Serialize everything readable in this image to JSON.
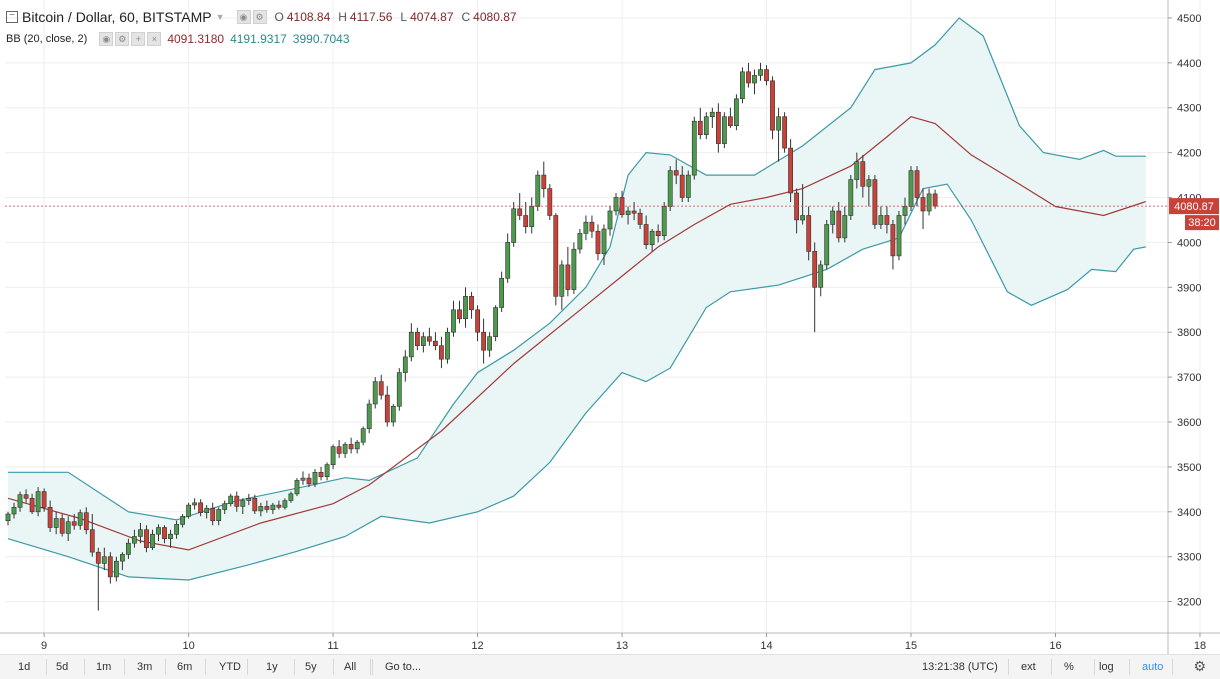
{
  "header": {
    "symbol_title": "Bitcoin / Dollar, 60, BITSTAMP",
    "ohlc": [
      {
        "label": "O",
        "value": "4108.84"
      },
      {
        "label": "H",
        "value": "4117.56"
      },
      {
        "label": "L",
        "value": "4074.87"
      },
      {
        "label": "C",
        "value": "4080.87"
      }
    ],
    "indicator": {
      "name": "BB (20, close, 2)",
      "values": [
        "4091.3180",
        "4191.9317",
        "3990.7043"
      ],
      "value_colors": [
        "#8b2d2d",
        "#2a8a8a",
        "#2a8a8a"
      ]
    }
  },
  "colors": {
    "up": "#4d9a4d",
    "down": "#c8423a",
    "band_line": "#3a9aa6",
    "band_fill": "#eaf5f5",
    "basis_line": "#a33a3a",
    "price_line": "#c8423a"
  },
  "chart_data": {
    "type": "candlestick",
    "interval": "60",
    "ylim": [
      3130,
      4540
    ],
    "y_ticks": [
      3200,
      3300,
      3400,
      3500,
      3600,
      3700,
      3800,
      3900,
      4000,
      4100,
      4200,
      4300,
      4400,
      4500
    ],
    "x_ticks": [
      {
        "label": "9",
        "bar": 6
      },
      {
        "label": "10",
        "bar": 30
      },
      {
        "label": "11",
        "bar": 54
      },
      {
        "label": "12",
        "bar": 78
      },
      {
        "label": "13",
        "bar": 102
      },
      {
        "label": "14",
        "bar": 126
      },
      {
        "label": "15",
        "bar": 150
      },
      {
        "label": "16",
        "bar": 174
      },
      {
        "label": "18",
        "bar": 198
      }
    ],
    "last_price": {
      "value": 4080.87,
      "label": "4080.87",
      "countdown": "38:20"
    },
    "bars": [
      [
        3380,
        3400,
        3370,
        3395
      ],
      [
        3395,
        3420,
        3385,
        3410
      ],
      [
        3410,
        3445,
        3400,
        3438
      ],
      [
        3438,
        3450,
        3420,
        3430
      ],
      [
        3430,
        3440,
        3395,
        3400
      ],
      [
        3400,
        3455,
        3390,
        3445
      ],
      [
        3445,
        3452,
        3400,
        3410
      ],
      [
        3410,
        3425,
        3355,
        3365
      ],
      [
        3365,
        3400,
        3350,
        3385
      ],
      [
        3385,
        3395,
        3345,
        3352
      ],
      [
        3352,
        3390,
        3335,
        3378
      ],
      [
        3378,
        3395,
        3360,
        3370
      ],
      [
        3370,
        3405,
        3360,
        3398
      ],
      [
        3398,
        3410,
        3350,
        3360
      ],
      [
        3360,
        3395,
        3300,
        3310
      ],
      [
        3310,
        3320,
        3180,
        3285
      ],
      [
        3285,
        3320,
        3270,
        3300
      ],
      [
        3300,
        3310,
        3240,
        3255
      ],
      [
        3255,
        3300,
        3245,
        3290
      ],
      [
        3290,
        3310,
        3270,
        3305
      ],
      [
        3305,
        3340,
        3295,
        3330
      ],
      [
        3330,
        3360,
        3320,
        3345
      ],
      [
        3345,
        3375,
        3330,
        3360
      ],
      [
        3360,
        3370,
        3310,
        3320
      ],
      [
        3320,
        3360,
        3315,
        3350
      ],
      [
        3350,
        3372,
        3335,
        3365
      ],
      [
        3365,
        3370,
        3330,
        3340
      ],
      [
        3340,
        3360,
        3320,
        3350
      ],
      [
        3350,
        3380,
        3340,
        3372
      ],
      [
        3372,
        3395,
        3365,
        3390
      ],
      [
        3390,
        3420,
        3385,
        3415
      ],
      [
        3415,
        3430,
        3405,
        3420
      ],
      [
        3420,
        3428,
        3390,
        3398
      ],
      [
        3398,
        3415,
        3385,
        3408
      ],
      [
        3408,
        3420,
        3370,
        3380
      ],
      [
        3380,
        3410,
        3370,
        3405
      ],
      [
        3405,
        3425,
        3395,
        3418
      ],
      [
        3418,
        3440,
        3412,
        3435
      ],
      [
        3435,
        3445,
        3400,
        3412
      ],
      [
        3412,
        3430,
        3395,
        3425
      ],
      [
        3425,
        3440,
        3415,
        3430
      ],
      [
        3430,
        3438,
        3395,
        3402
      ],
      [
        3402,
        3420,
        3390,
        3412
      ],
      [
        3412,
        3425,
        3398,
        3405
      ],
      [
        3405,
        3420,
        3395,
        3415
      ],
      [
        3415,
        3425,
        3405,
        3410
      ],
      [
        3410,
        3430,
        3405,
        3425
      ],
      [
        3425,
        3445,
        3420,
        3440
      ],
      [
        3440,
        3475,
        3435,
        3470
      ],
      [
        3470,
        3490,
        3460,
        3475
      ],
      [
        3475,
        3485,
        3455,
        3462
      ],
      [
        3462,
        3495,
        3455,
        3488
      ],
      [
        3488,
        3500,
        3470,
        3478
      ],
      [
        3478,
        3510,
        3470,
        3505
      ],
      [
        3505,
        3550,
        3495,
        3545
      ],
      [
        3545,
        3560,
        3520,
        3530
      ],
      [
        3530,
        3555,
        3520,
        3550
      ],
      [
        3550,
        3565,
        3530,
        3540
      ],
      [
        3540,
        3560,
        3530,
        3555
      ],
      [
        3555,
        3590,
        3548,
        3585
      ],
      [
        3585,
        3650,
        3575,
        3640
      ],
      [
        3640,
        3700,
        3630,
        3690
      ],
      [
        3690,
        3705,
        3650,
        3660
      ],
      [
        3660,
        3680,
        3590,
        3600
      ],
      [
        3600,
        3640,
        3590,
        3635
      ],
      [
        3635,
        3720,
        3625,
        3710
      ],
      [
        3710,
        3760,
        3690,
        3745
      ],
      [
        3745,
        3820,
        3735,
        3800
      ],
      [
        3800,
        3810,
        3760,
        3770
      ],
      [
        3770,
        3800,
        3755,
        3790
      ],
      [
        3790,
        3810,
        3770,
        3780
      ],
      [
        3780,
        3800,
        3760,
        3770
      ],
      [
        3770,
        3790,
        3720,
        3740
      ],
      [
        3740,
        3810,
        3730,
        3800
      ],
      [
        3800,
        3870,
        3790,
        3850
      ],
      [
        3850,
        3870,
        3820,
        3830
      ],
      [
        3830,
        3900,
        3810,
        3880
      ],
      [
        3880,
        3890,
        3830,
        3850
      ],
      [
        3850,
        3860,
        3780,
        3800
      ],
      [
        3800,
        3830,
        3730,
        3760
      ],
      [
        3760,
        3800,
        3745,
        3790
      ],
      [
        3790,
        3860,
        3780,
        3855
      ],
      [
        3855,
        3935,
        3845,
        3920
      ],
      [
        3920,
        4020,
        3910,
        4000
      ],
      [
        4000,
        4090,
        3990,
        4075
      ],
      [
        4075,
        4110,
        4050,
        4060
      ],
      [
        4060,
        4090,
        4020,
        4035
      ],
      [
        4035,
        4100,
        4020,
        4080
      ],
      [
        4080,
        4160,
        4070,
        4150
      ],
      [
        4150,
        4180,
        4100,
        4120
      ],
      [
        4120,
        4130,
        4050,
        4060
      ],
      [
        4060,
        4065,
        3860,
        3880
      ],
      [
        3880,
        3960,
        3850,
        3950
      ],
      [
        3950,
        3990,
        3880,
        3895
      ],
      [
        3895,
        4000,
        3885,
        3985
      ],
      [
        3985,
        4030,
        3975,
        4020
      ],
      [
        4020,
        4060,
        4005,
        4045
      ],
      [
        4045,
        4060,
        4010,
        4025
      ],
      [
        4025,
        4040,
        3960,
        3975
      ],
      [
        3975,
        4040,
        3950,
        4030
      ],
      [
        4030,
        4080,
        4015,
        4070
      ],
      [
        4070,
        4110,
        4060,
        4100
      ],
      [
        4100,
        4115,
        4055,
        4062
      ],
      [
        4062,
        4080,
        4040,
        4070
      ],
      [
        4070,
        4090,
        4050,
        4065
      ],
      [
        4065,
        4075,
        4030,
        4040
      ],
      [
        4040,
        4060,
        3985,
        3995
      ],
      [
        3995,
        4030,
        3980,
        4025
      ],
      [
        4025,
        4040,
        4000,
        4015
      ],
      [
        4015,
        4090,
        4005,
        4080
      ],
      [
        4080,
        4170,
        4070,
        4160
      ],
      [
        4160,
        4185,
        4130,
        4150
      ],
      [
        4150,
        4170,
        4090,
        4100
      ],
      [
        4100,
        4160,
        4090,
        4150
      ],
      [
        4150,
        4280,
        4140,
        4270
      ],
      [
        4270,
        4300,
        4230,
        4240
      ],
      [
        4240,
        4290,
        4230,
        4280
      ],
      [
        4280,
        4300,
        4255,
        4290
      ],
      [
        4290,
        4310,
        4200,
        4220
      ],
      [
        4220,
        4290,
        4210,
        4280
      ],
      [
        4280,
        4300,
        4255,
        4260
      ],
      [
        4260,
        4330,
        4250,
        4320
      ],
      [
        4320,
        4390,
        4310,
        4380
      ],
      [
        4380,
        4400,
        4345,
        4355
      ],
      [
        4355,
        4385,
        4330,
        4372
      ],
      [
        4372,
        4400,
        4360,
        4385
      ],
      [
        4385,
        4395,
        4350,
        4360
      ],
      [
        4360,
        4370,
        4230,
        4250
      ],
      [
        4250,
        4300,
        4180,
        4280
      ],
      [
        4280,
        4290,
        4200,
        4210
      ],
      [
        4210,
        4230,
        4090,
        4110
      ],
      [
        4110,
        4120,
        4020,
        4050
      ],
      [
        4050,
        4130,
        4040,
        4060
      ],
      [
        4060,
        4080,
        3960,
        3980
      ],
      [
        3980,
        4000,
        3800,
        3900
      ],
      [
        3900,
        3960,
        3880,
        3950
      ],
      [
        3950,
        4050,
        3940,
        4040
      ],
      [
        4040,
        4080,
        4020,
        4070
      ],
      [
        4070,
        4090,
        4000,
        4010
      ],
      [
        4010,
        4080,
        4000,
        4060
      ],
      [
        4060,
        4150,
        4050,
        4140
      ],
      [
        4140,
        4200,
        4120,
        4180
      ],
      [
        4180,
        4195,
        4100,
        4125
      ],
      [
        4125,
        4150,
        4080,
        4140
      ],
      [
        4140,
        4150,
        4030,
        4040
      ],
      [
        4040,
        4080,
        4030,
        4060
      ],
      [
        4060,
        4080,
        4020,
        4040
      ],
      [
        4040,
        4050,
        3940,
        3970
      ],
      [
        3970,
        4070,
        3960,
        4060
      ],
      [
        4060,
        4100,
        4040,
        4080
      ],
      [
        4080,
        4170,
        4070,
        4160
      ],
      [
        4160,
        4170,
        4080,
        4100
      ],
      [
        4100,
        4120,
        4030,
        4070
      ],
      [
        4070,
        4120,
        4060,
        4108
      ],
      [
        4108,
        4117.56,
        4074.87,
        4080.87
      ]
    ],
    "bollinger": {
      "basis": [
        [
          0,
          3430
        ],
        [
          12,
          3385
        ],
        [
          22,
          3335
        ],
        [
          30,
          3315
        ],
        [
          42,
          3375
        ],
        [
          54,
          3418
        ],
        [
          60,
          3460
        ],
        [
          72,
          3580
        ],
        [
          84,
          3730
        ],
        [
          96,
          3860
        ],
        [
          108,
          3990
        ],
        [
          114,
          4040
        ],
        [
          120,
          4085
        ],
        [
          126,
          4100
        ],
        [
          132,
          4120
        ],
        [
          140,
          4170
        ],
        [
          146,
          4235
        ],
        [
          150,
          4280
        ],
        [
          154,
          4265
        ],
        [
          160,
          4195
        ],
        [
          168,
          4130
        ],
        [
          174,
          4080
        ],
        [
          182,
          4060
        ],
        [
          189,
          4091
        ]
      ],
      "upper": [
        [
          0,
          3488
        ],
        [
          10,
          3488
        ],
        [
          20,
          3400
        ],
        [
          28,
          3382
        ],
        [
          38,
          3425
        ],
        [
          50,
          3458
        ],
        [
          56,
          3476
        ],
        [
          60,
          3470
        ],
        [
          68,
          3520
        ],
        [
          74,
          3640
        ],
        [
          78,
          3710
        ],
        [
          84,
          3760
        ],
        [
          90,
          3820
        ],
        [
          96,
          3900
        ],
        [
          100,
          3990
        ],
        [
          103,
          4150
        ],
        [
          106,
          4200
        ],
        [
          110,
          4195
        ],
        [
          116,
          4150
        ],
        [
          124,
          4150
        ],
        [
          132,
          4215
        ],
        [
          140,
          4300
        ],
        [
          144,
          4385
        ],
        [
          150,
          4400
        ],
        [
          154,
          4440
        ],
        [
          158,
          4500
        ],
        [
          162,
          4460
        ],
        [
          168,
          4260
        ],
        [
          172,
          4200
        ],
        [
          178,
          4185
        ],
        [
          182,
          4205
        ],
        [
          184,
          4192
        ],
        [
          189,
          4192
        ]
      ],
      "lower": [
        [
          0,
          3340
        ],
        [
          10,
          3300
        ],
        [
          20,
          3255
        ],
        [
          30,
          3248
        ],
        [
          40,
          3282
        ],
        [
          48,
          3312
        ],
        [
          56,
          3345
        ],
        [
          62,
          3390
        ],
        [
          70,
          3375
        ],
        [
          78,
          3400
        ],
        [
          84,
          3435
        ],
        [
          90,
          3510
        ],
        [
          96,
          3620
        ],
        [
          102,
          3710
        ],
        [
          106,
          3690
        ],
        [
          110,
          3720
        ],
        [
          116,
          3855
        ],
        [
          120,
          3890
        ],
        [
          128,
          3905
        ],
        [
          136,
          3940
        ],
        [
          142,
          3985
        ],
        [
          148,
          4010
        ],
        [
          152,
          4120
        ],
        [
          156,
          4130
        ],
        [
          160,
          4050
        ],
        [
          166,
          3890
        ],
        [
          170,
          3860
        ],
        [
          176,
          3895
        ],
        [
          180,
          3940
        ],
        [
          184,
          3935
        ],
        [
          187,
          3985
        ],
        [
          189,
          3990
        ]
      ]
    }
  },
  "toolbar": {
    "ranges": [
      "1d",
      "5d",
      "1m",
      "3m",
      "6m",
      "YTD",
      "1y",
      "5y",
      "All"
    ],
    "goto": "Go to...",
    "time": "13:21:38 (UTC)",
    "options": [
      "ext",
      "%",
      "log",
      "auto"
    ],
    "active_option": "auto"
  }
}
